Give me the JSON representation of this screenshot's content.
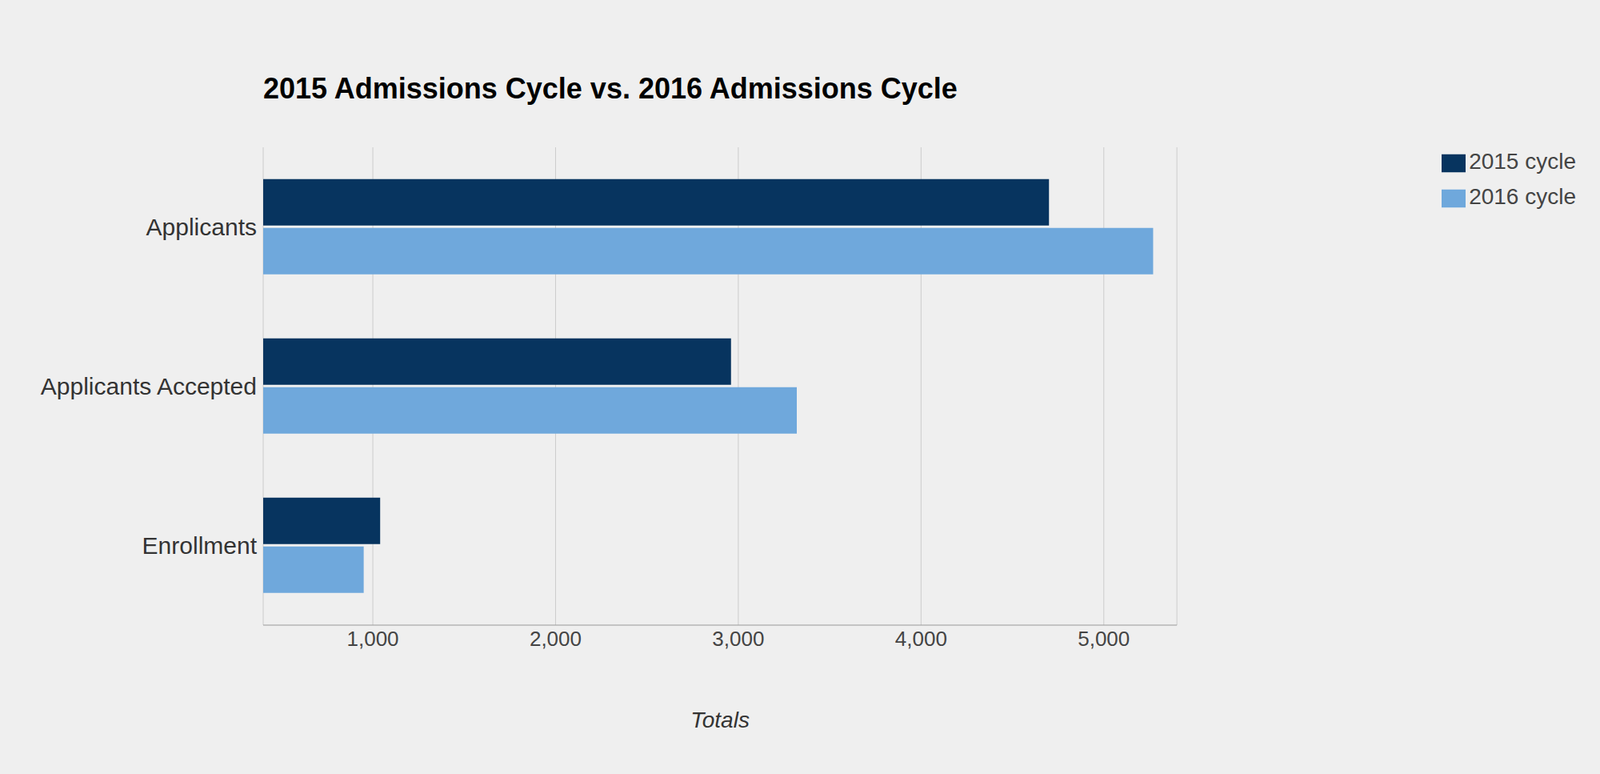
{
  "chart_data": {
    "type": "bar",
    "orientation": "horizontal",
    "title": "2015 Admissions Cycle vs. 2016 Admissions Cycle",
    "x_label": "Totals",
    "categories": [
      "Applicants",
      "Applicants Accepted",
      "Enrollment"
    ],
    "series": [
      {
        "name": "2015 cycle",
        "color": "#07345f",
        "values": [
          4700,
          2960,
          1040
        ]
      },
      {
        "name": "2016 cycle",
        "color": "#6fa8dc",
        "values": [
          5270,
          3320,
          950
        ]
      }
    ],
    "xlim": [
      400,
      5400
    ],
    "xticks": [
      {
        "value": 1000,
        "label": "1,000"
      },
      {
        "value": 2000,
        "label": "2,000"
      },
      {
        "value": 3000,
        "label": "3,000"
      },
      {
        "value": 4000,
        "label": "4,000"
      },
      {
        "value": 5000,
        "label": "5,000"
      }
    ],
    "grid": true,
    "legend": "top right"
  }
}
